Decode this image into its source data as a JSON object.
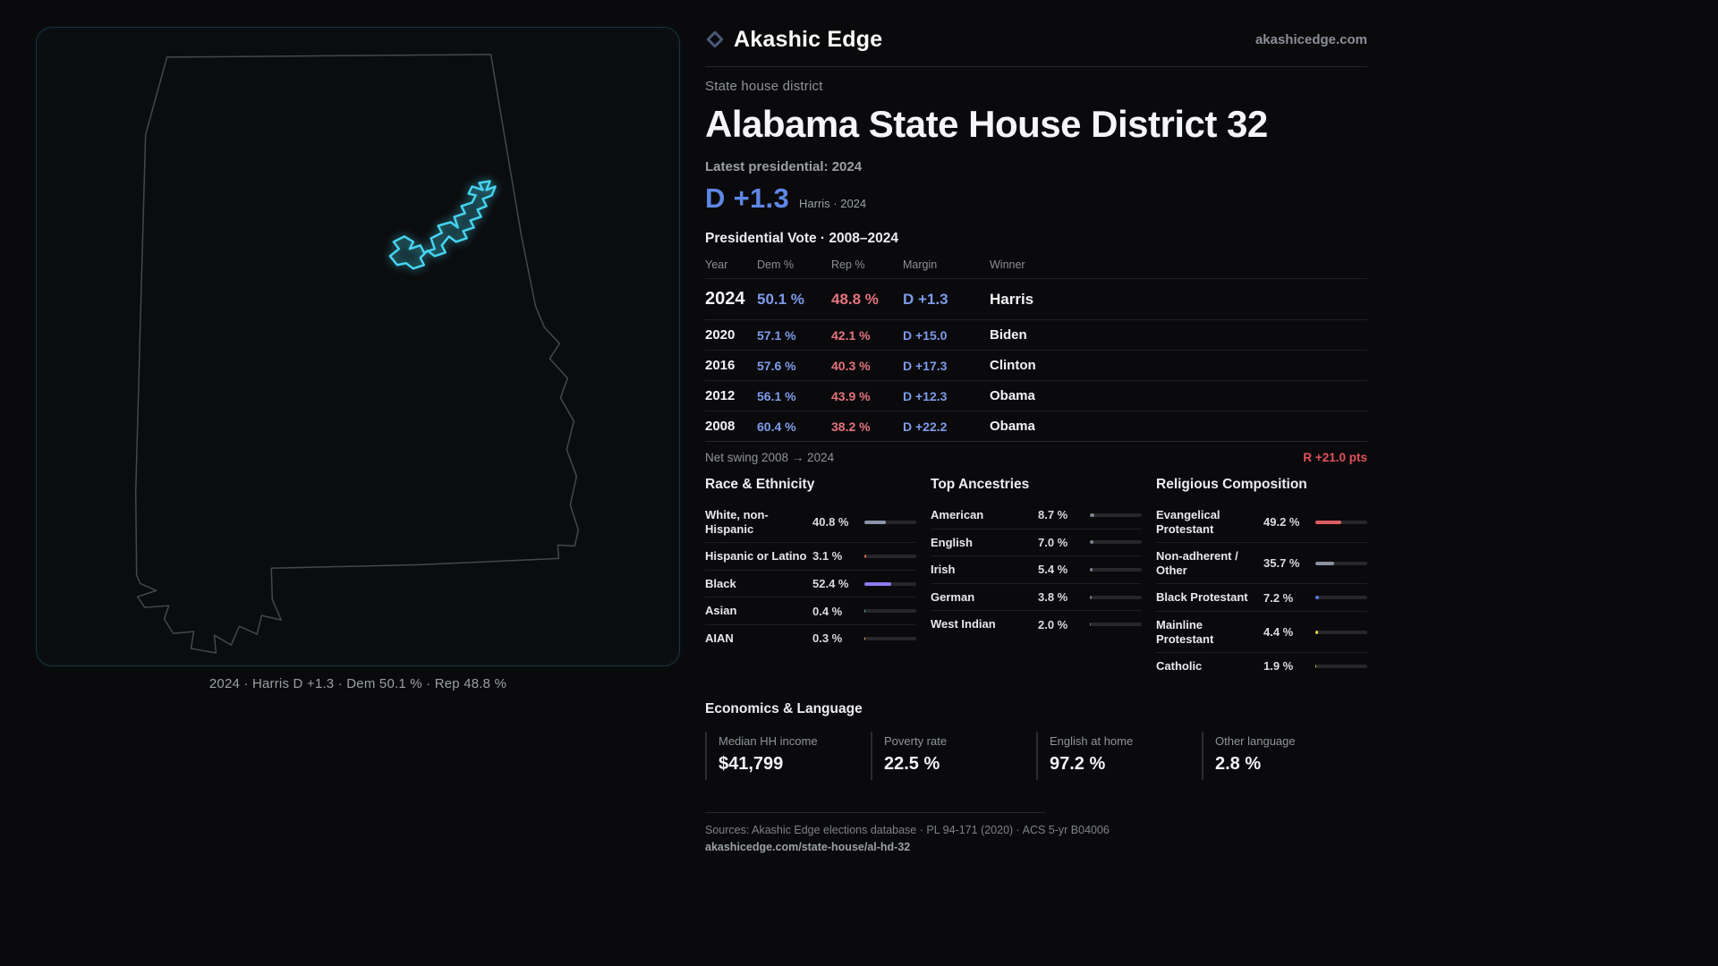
{
  "colors": {
    "background": "#0a0a0c",
    "dem_blue": "#5f87e8",
    "rep_red": "#e4737e",
    "district_cyan": "#45d4f0",
    "swing_red": "#e2525c"
  },
  "brand": {
    "name": "Akashic Edge",
    "site": "akashicedge.com"
  },
  "map": {
    "caption": "2024 · Harris D +1.3 · Dem 50.1 % · Rep 48.8 %"
  },
  "header": {
    "kicker": "State house district",
    "title": "Alabama State House District 32",
    "latest_label": "Latest presidential: 2024",
    "headline_margin": "D +1.3",
    "headline_detail": "Harris · 2024"
  },
  "vote_table": {
    "title": "Presidential Vote · 2008–2024",
    "columns": [
      "Year",
      "Dem %",
      "Rep %",
      "Margin",
      "Winner"
    ],
    "rows": [
      {
        "year": "2024",
        "dem": "50.1 %",
        "rep": "48.8 %",
        "margin": "D +1.3",
        "winner": "Harris"
      },
      {
        "year": "2020",
        "dem": "57.1 %",
        "rep": "42.1 %",
        "margin": "D +15.0",
        "winner": "Biden"
      },
      {
        "year": "2016",
        "dem": "57.6 %",
        "rep": "40.3 %",
        "margin": "D +17.3",
        "winner": "Clinton"
      },
      {
        "year": "2012",
        "dem": "56.1 %",
        "rep": "43.9 %",
        "margin": "D +12.3",
        "winner": "Obama"
      },
      {
        "year": "2008",
        "dem": "60.4 %",
        "rep": "38.2 %",
        "margin": "D +22.2",
        "winner": "Obama"
      }
    ]
  },
  "net_swing": {
    "label": "Net swing 2008 → 2024",
    "value": "R +21.0 pts"
  },
  "demographics": {
    "race": {
      "title": "Race & Ethnicity",
      "items": [
        {
          "label": "White, non-Hispanic",
          "value": "40.8 %",
          "pct": 40.8,
          "color": "#8b93a8"
        },
        {
          "label": "Hispanic or Latino",
          "value": "3.1 %",
          "pct": 3.1,
          "color": "#e0635a"
        },
        {
          "label": "Black",
          "value": "52.4 %",
          "pct": 52.4,
          "color": "#8d7bf0"
        },
        {
          "label": "Asian",
          "value": "0.4 %",
          "pct": 0.4,
          "color": "#4db6ac"
        },
        {
          "label": "AIAN",
          "value": "0.3 %",
          "pct": 0.3,
          "color": "#e0a84d"
        }
      ]
    },
    "ancestries": {
      "title": "Top Ancestries",
      "items": [
        {
          "label": "American",
          "value": "8.7 %",
          "pct": 8.7,
          "color": "#7a828e"
        },
        {
          "label": "English",
          "value": "7.0 %",
          "pct": 7.0,
          "color": "#7a828e"
        },
        {
          "label": "Irish",
          "value": "5.4 %",
          "pct": 5.4,
          "color": "#7a828e"
        },
        {
          "label": "German",
          "value": "3.8 %",
          "pct": 3.8,
          "color": "#7a828e"
        },
        {
          "label": "West Indian",
          "value": "2.0 %",
          "pct": 2.0,
          "color": "#7a828e"
        }
      ]
    },
    "religion": {
      "title": "Religious Composition",
      "items": [
        {
          "label": "Evangelical Protestant",
          "value": "49.2 %",
          "pct": 49.2,
          "color": "#e05c64"
        },
        {
          "label": "Non-adherent / Other",
          "value": "35.7 %",
          "pct": 35.7,
          "color": "#8b93a0"
        },
        {
          "label": "Black Protestant",
          "value": "7.2 %",
          "pct": 7.2,
          "color": "#5b7be8"
        },
        {
          "label": "Mainline Protestant",
          "value": "4.4 %",
          "pct": 4.4,
          "color": "#e8d44d"
        },
        {
          "label": "Catholic",
          "value": "1.9 %",
          "pct": 1.9,
          "color": "#cfc04a"
        }
      ]
    }
  },
  "economics": {
    "title": "Economics & Language",
    "stats": [
      {
        "label": "Median HH income",
        "value": "$41,799"
      },
      {
        "label": "Poverty rate",
        "value": "22.5 %"
      },
      {
        "label": "English at home",
        "value": "97.2 %"
      },
      {
        "label": "Other language",
        "value": "2.8 %"
      }
    ]
  },
  "footer": {
    "sources": "Sources: Akashic Edge elections database · PL 94-171 (2020) · ACS 5-yr B04006",
    "permalink": "akashicedge.com/state-house/al-hd-32"
  }
}
